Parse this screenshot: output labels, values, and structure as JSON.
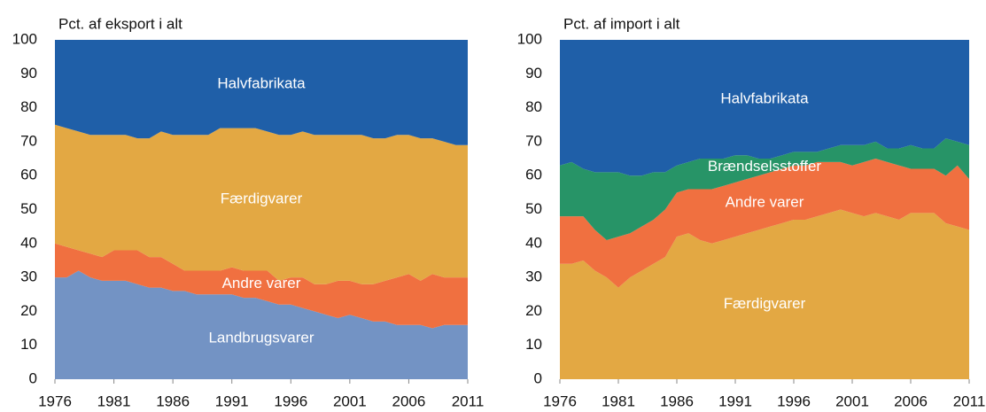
{
  "chart_data": [
    {
      "type": "stacked_area",
      "title": "Pct. af eksport i alt",
      "x": [
        1976,
        1977,
        1978,
        1979,
        1980,
        1981,
        1982,
        1983,
        1984,
        1985,
        1986,
        1987,
        1988,
        1989,
        1990,
        1991,
        1992,
        1993,
        1994,
        1995,
        1996,
        1997,
        1998,
        1999,
        2000,
        2001,
        2002,
        2003,
        2004,
        2005,
        2006,
        2007,
        2008,
        2009,
        2010,
        2011
      ],
      "xlim": [
        1976,
        2011
      ],
      "xticks": [
        1976,
        1981,
        1986,
        1991,
        1996,
        2001,
        2006,
        2011
      ],
      "ylim": [
        0,
        100
      ],
      "yticks": [
        0,
        10,
        20,
        30,
        40,
        50,
        60,
        70,
        80,
        90,
        100
      ],
      "series": [
        {
          "name": "Landbrugsvarer",
          "color": "#7393c4",
          "values": [
            30,
            30,
            32,
            30,
            29,
            29,
            29,
            28,
            27,
            27,
            26,
            26,
            25,
            25,
            25,
            25,
            24,
            24,
            23,
            22,
            22,
            21,
            20,
            19,
            18,
            19,
            18,
            17,
            17,
            16,
            16,
            16,
            15,
            16,
            16,
            16
          ]
        },
        {
          "name": "Andre varer",
          "color": "#f07040",
          "values": [
            10,
            9,
            6,
            7,
            7,
            9,
            9,
            10,
            9,
            9,
            8,
            6,
            7,
            7,
            7,
            8,
            8,
            8,
            9,
            7,
            8,
            9,
            8,
            9,
            11,
            10,
            10,
            11,
            12,
            14,
            15,
            13,
            16,
            14,
            14,
            14
          ]
        },
        {
          "name": "Færdigvarer",
          "color": "#e3a843",
          "values": [
            35,
            35,
            35,
            35,
            36,
            34,
            34,
            33,
            35,
            37,
            38,
            40,
            40,
            40,
            42,
            41,
            42,
            42,
            41,
            43,
            42,
            43,
            44,
            44,
            43,
            43,
            44,
            43,
            42,
            42,
            41,
            42,
            40,
            40,
            39,
            39
          ]
        },
        {
          "name": "Halvfabrikata",
          "color": "#1f5fa8",
          "values": [
            25,
            26,
            27,
            28,
            28,
            28,
            28,
            29,
            29,
            27,
            28,
            28,
            28,
            28,
            26,
            26,
            26,
            26,
            27,
            28,
            28,
            27,
            28,
            28,
            28,
            28,
            28,
            29,
            29,
            28,
            28,
            29,
            29,
            30,
            31,
            31
          ]
        }
      ]
    },
    {
      "type": "stacked_area",
      "title": "Pct. af import i alt",
      "x": [
        1976,
        1977,
        1978,
        1979,
        1980,
        1981,
        1982,
        1983,
        1984,
        1985,
        1986,
        1987,
        1988,
        1989,
        1990,
        1991,
        1992,
        1993,
        1994,
        1995,
        1996,
        1997,
        1998,
        1999,
        2000,
        2001,
        2002,
        2003,
        2004,
        2005,
        2006,
        2007,
        2008,
        2009,
        2010,
        2011
      ],
      "xlim": [
        1976,
        2011
      ],
      "xticks": [
        1976,
        1981,
        1986,
        1991,
        1996,
        2001,
        2006,
        2011
      ],
      "ylim": [
        0,
        100
      ],
      "yticks": [
        0,
        10,
        20,
        30,
        40,
        50,
        60,
        70,
        80,
        90,
        100
      ],
      "series": [
        {
          "name": "Færdigvarer",
          "color": "#e3a843",
          "values": [
            34,
            34,
            35,
            32,
            30,
            27,
            30,
            32,
            34,
            36,
            42,
            43,
            41,
            40,
            41,
            42,
            43,
            44,
            45,
            46,
            47,
            47,
            48,
            49,
            50,
            49,
            48,
            49,
            48,
            47,
            49,
            49,
            49,
            46,
            45,
            44
          ]
        },
        {
          "name": "Andre varer",
          "color": "#f07040",
          "values": [
            14,
            14,
            13,
            12,
            11,
            15,
            13,
            13,
            13,
            14,
            13,
            13,
            15,
            16,
            16,
            16,
            16,
            16,
            16,
            16,
            16,
            16,
            16,
            15,
            14,
            14,
            16,
            16,
            16,
            16,
            13,
            13,
            13,
            14,
            18,
            15
          ]
        },
        {
          "name": "Brændselsstoffer",
          "color": "#279467",
          "values": [
            15,
            16,
            14,
            17,
            20,
            19,
            17,
            15,
            14,
            11,
            8,
            8,
            9,
            9,
            8,
            8,
            7,
            5,
            4,
            4,
            4,
            4,
            3,
            4,
            5,
            6,
            5,
            5,
            4,
            5,
            7,
            6,
            6,
            11,
            7,
            10
          ]
        },
        {
          "name": "Halvfabrikata",
          "color": "#1f5fa8",
          "values": [
            37,
            36,
            38,
            39,
            39,
            39,
            40,
            40,
            39,
            39,
            37,
            36,
            35,
            35,
            35,
            34,
            34,
            35,
            35,
            34,
            33,
            33,
            33,
            32,
            31,
            31,
            31,
            30,
            32,
            32,
            31,
            32,
            32,
            29,
            30,
            31
          ]
        }
      ]
    }
  ]
}
